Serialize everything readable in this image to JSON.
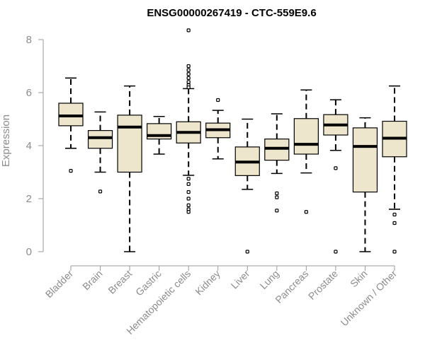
{
  "chart_data": {
    "type": "boxplot",
    "title": "ENSG00000267419 - CTC-559E9.6",
    "xlabel": "",
    "ylabel": "Expression",
    "ylim": [
      0,
      8
    ],
    "yticks": [
      0,
      2,
      4,
      6,
      8
    ],
    "box_color": "#ede6cc",
    "line_color": "#000000",
    "label_color": "#8c8c8c",
    "categories": [
      "Bladder",
      "Brain",
      "Breast",
      "Gastric",
      "Hematopoietic cells",
      "Kidney",
      "Liver",
      "Lung",
      "Pancreas",
      "Prostate",
      "Skin",
      "Unknown / Other"
    ],
    "boxes": [
      {
        "name": "Bladder",
        "q1": 4.75,
        "median": 5.12,
        "q3": 5.6,
        "whisker_low": 3.9,
        "whisker_high": 6.55,
        "outliers": [
          3.05
        ]
      },
      {
        "name": "Brain",
        "q1": 3.9,
        "median": 4.3,
        "q3": 4.57,
        "whisker_low": 3.0,
        "whisker_high": 5.27,
        "outliers": [
          2.27
        ]
      },
      {
        "name": "Breast",
        "q1": 3.0,
        "median": 4.7,
        "q3": 5.15,
        "whisker_low": 0.0,
        "whisker_high": 6.25,
        "outliers": []
      },
      {
        "name": "Gastric",
        "q1": 4.25,
        "median": 4.38,
        "q3": 4.83,
        "whisker_low": 3.68,
        "whisker_high": 5.1,
        "outliers": []
      },
      {
        "name": "Hematopoietic cells",
        "q1": 4.1,
        "median": 4.5,
        "q3": 4.9,
        "whisker_low": 2.88,
        "whisker_high": 6.15,
        "outliers": [
          8.35,
          7.0,
          6.85,
          6.7,
          6.55,
          6.4,
          6.28,
          6.2,
          2.75,
          2.55,
          2.25,
          2.0,
          1.75,
          1.6,
          1.5
        ]
      },
      {
        "name": "Kidney",
        "q1": 4.3,
        "median": 4.6,
        "q3": 4.85,
        "whisker_low": 3.5,
        "whisker_high": 5.33,
        "outliers": [
          5.72
        ]
      },
      {
        "name": "Liver",
        "q1": 2.87,
        "median": 3.38,
        "q3": 3.95,
        "whisker_low": 2.35,
        "whisker_high": 5.0,
        "outliers": [
          0.0
        ]
      },
      {
        "name": "Lung",
        "q1": 3.45,
        "median": 3.9,
        "q3": 4.25,
        "whisker_low": 2.95,
        "whisker_high": 5.2,
        "outliers": [
          2.2,
          2.05,
          1.55
        ]
      },
      {
        "name": "Pancreas",
        "q1": 3.68,
        "median": 4.05,
        "q3": 5.02,
        "whisker_low": 2.97,
        "whisker_high": 6.1,
        "outliers": [
          1.5
        ]
      },
      {
        "name": "Prostate",
        "q1": 4.4,
        "median": 4.78,
        "q3": 5.17,
        "whisker_low": 3.82,
        "whisker_high": 5.73,
        "outliers": [
          3.15,
          0.0
        ]
      },
      {
        "name": "Skin",
        "q1": 2.25,
        "median": 3.97,
        "q3": 4.67,
        "whisker_low": 0.0,
        "whisker_high": 5.05,
        "outliers": []
      },
      {
        "name": "Unknown / Other",
        "q1": 3.58,
        "median": 4.28,
        "q3": 4.92,
        "whisker_low": 1.6,
        "whisker_high": 6.25,
        "outliers": [
          1.4,
          1.08,
          0.0
        ]
      }
    ]
  }
}
